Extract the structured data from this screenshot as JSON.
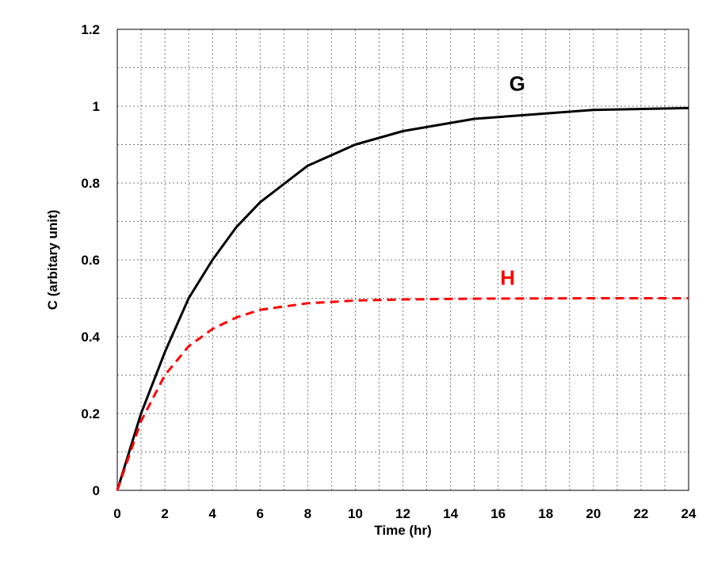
{
  "chart_data": {
    "type": "line",
    "xlabel": "Time (hr)",
    "ylabel": "C (arbitary unit)",
    "xlim": [
      0,
      24
    ],
    "ylim": [
      0,
      1.2
    ],
    "xticks": [
      "0",
      "2",
      "4",
      "6",
      "8",
      "10",
      "12",
      "14",
      "16",
      "18",
      "20",
      "22",
      "24"
    ],
    "yticks": [
      "0",
      "0.2",
      "0.4",
      "0.6",
      "0.8",
      "1",
      "1.2"
    ],
    "grid": true,
    "series": [
      {
        "name": "G",
        "color": "#000000",
        "style": "solid",
        "x": [
          0,
          1,
          2,
          3,
          4,
          5,
          6,
          8,
          10,
          12,
          15,
          20,
          24
        ],
        "y": [
          0,
          0.2,
          0.36,
          0.5,
          0.6,
          0.685,
          0.75,
          0.845,
          0.9,
          0.935,
          0.967,
          0.99,
          0.995
        ]
      },
      {
        "name": "H",
        "color": "#ff0000",
        "style": "dashed",
        "x": [
          0,
          1,
          2,
          3,
          4,
          5,
          6,
          8,
          10,
          12,
          15,
          20,
          24
        ],
        "y": [
          0,
          0.18,
          0.3,
          0.375,
          0.42,
          0.45,
          0.47,
          0.487,
          0.494,
          0.497,
          0.499,
          0.5,
          0.5
        ]
      }
    ]
  }
}
